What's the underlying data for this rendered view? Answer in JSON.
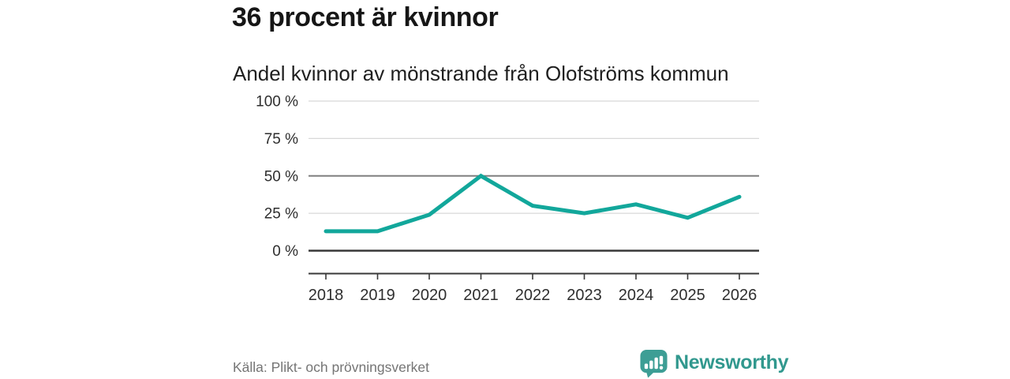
{
  "header": {
    "title": "36 procent är kvinnor",
    "subtitle": "Andel kvinnor av mönstrande från Olofströms kommun"
  },
  "chart_data": {
    "type": "line",
    "title": "36 procent är kvinnor",
    "subtitle": "Andel kvinnor av mönstrande från Olofströms kommun",
    "x": [
      "2018",
      "2019",
      "2020",
      "2021",
      "2022",
      "2023",
      "2024",
      "2025",
      "2026"
    ],
    "series": [
      {
        "name": "Andel kvinnor av mönstrande",
        "values": [
          13,
          13,
          24,
          50,
          30,
          25,
          31,
          22,
          36
        ]
      }
    ],
    "xlabel": "",
    "ylabel": "",
    "ylim": [
      0,
      100
    ],
    "yticks": [
      0,
      25,
      50,
      75,
      100
    ],
    "ytick_labels": [
      "0 %",
      "25 %",
      "50 %",
      "75 %",
      "100 %"
    ],
    "grid": "horizontal",
    "strong_gridline": 50,
    "baseline_gridline": 0,
    "legend": "none",
    "line_color": "#12a79b"
  },
  "footer": {
    "source": "Källa: Plikt- och prövningsverket",
    "brand": "Newsworthy"
  },
  "icons": {
    "logo": "newsworthy-speech-bubble-bar-chart-icon"
  },
  "colors": {
    "accent_line": "#12a79b",
    "brand_teal_icon": "#3d9e95",
    "brand_teal_text": "#31988e",
    "grid_light": "#d8d8d8",
    "grid_strong": "#7f7f7f",
    "axis_dark": "#383838",
    "title_text": "#161616",
    "tick_text": "#2e2e2e",
    "source_text": "#757575",
    "background": "#ffffff"
  }
}
